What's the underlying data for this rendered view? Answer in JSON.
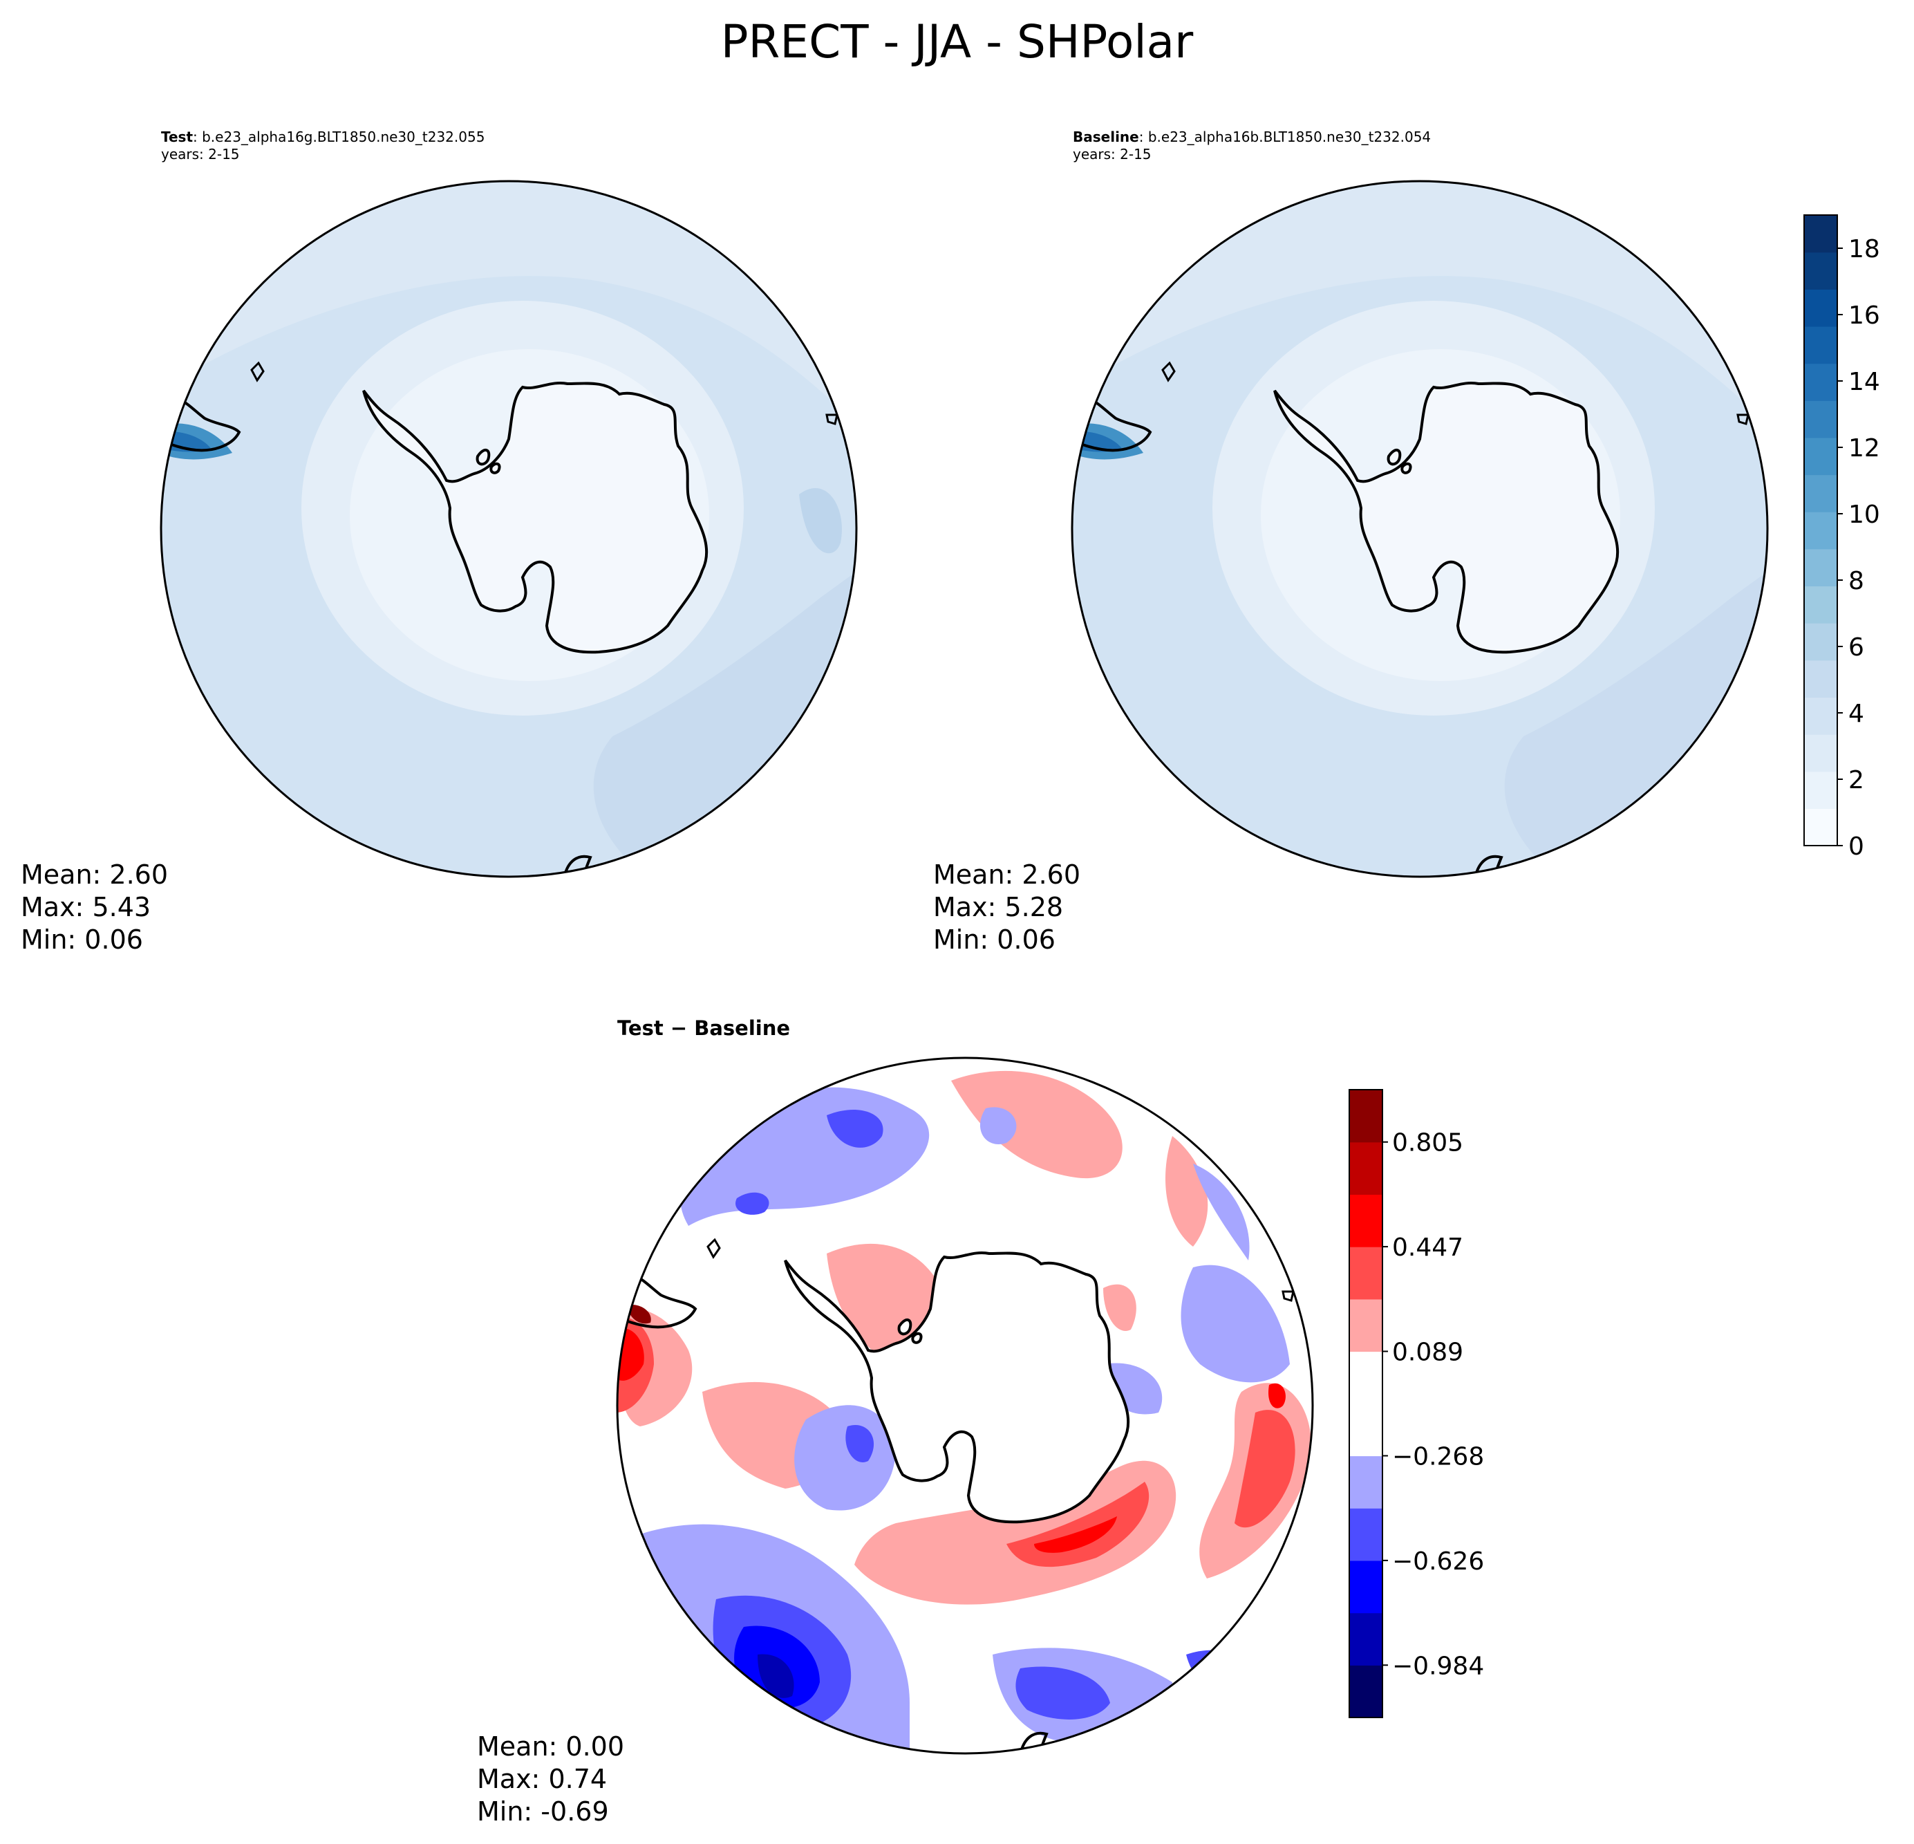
{
  "title": "PRECT - JJA - SHPolar",
  "panels": {
    "test": {
      "label": "Test",
      "case": ": b.e23_alpha16g.BLT1850.ne30_t232.055",
      "years": "years: 2-15",
      "stats": {
        "mean": "Mean:  2.60",
        "max": "Max:  5.43",
        "min": "Min:  0.06"
      }
    },
    "baseline": {
      "label": "Baseline",
      "case": ": b.e23_alpha16b.BLT1850.ne30_t232.054",
      "years": "years: 2-15",
      "stats": {
        "mean": "Mean:  2.60",
        "max": "Max:  5.28",
        "min": "Min:  0.06"
      }
    },
    "diff": {
      "title": "Test − Baseline",
      "stats": {
        "mean": "Mean:  0.00",
        "max": "Max:  0.74",
        "min": "Min: -0.69"
      }
    }
  },
  "colors": {
    "blues": [
      "#f7fbff",
      "#eaf3fb",
      "#deebf7",
      "#d2e3f3",
      "#c6dbef",
      "#b2d2e8",
      "#9ecae1",
      "#85bcdc",
      "#6baed6",
      "#57a0ce",
      "#4292c6",
      "#3282be",
      "#2171b5",
      "#1361a9",
      "#08519c",
      "#083f7f",
      "#08306b"
    ],
    "diverging": [
      "#000066",
      "#0000b3",
      "#0000ff",
      "#4d4dff",
      "#a6a6ff",
      "#ffffff",
      "#ffa6a6",
      "#ff4d4d",
      "#ff0000",
      "#c00000",
      "#8b0000"
    ],
    "coast": "#000000"
  },
  "chart_data": [
    {
      "type": "filled-contour",
      "panel": "test",
      "projection": "south polar stereographic",
      "variable": "PRECT",
      "season": "JJA",
      "mean": 2.6,
      "max": 5.43,
      "min": 0.06,
      "colorbar_range": [
        0,
        19
      ]
    },
    {
      "type": "filled-contour",
      "panel": "baseline",
      "projection": "south polar stereographic",
      "variable": "PRECT",
      "season": "JJA",
      "mean": 2.6,
      "max": 5.28,
      "min": 0.06,
      "colorbar": {
        "ticks": [
          0,
          2,
          4,
          6,
          8,
          10,
          12,
          14,
          16,
          18
        ],
        "tick_labels": [
          "0",
          "2",
          "4",
          "6",
          "8",
          "10",
          "12",
          "14",
          "16",
          "18"
        ],
        "range": [
          0,
          19
        ]
      }
    },
    {
      "type": "filled-contour",
      "panel": "difference",
      "projection": "south polar stereographic",
      "mean": 0.0,
      "max": 0.74,
      "min": -0.69,
      "colorbar": {
        "levels": [
          -1.163,
          -0.984,
          -0.805,
          -0.626,
          -0.447,
          -0.268,
          -0.089,
          0.089,
          0.268,
          0.447,
          0.626,
          0.805,
          0.984
        ],
        "ticks": [
          -0.984,
          -0.626,
          -0.268,
          0.089,
          0.447,
          0.805
        ],
        "tick_labels": [
          "−0.984",
          "−0.626",
          "−0.268",
          "0.089",
          "0.447",
          "0.805"
        ]
      }
    }
  ]
}
